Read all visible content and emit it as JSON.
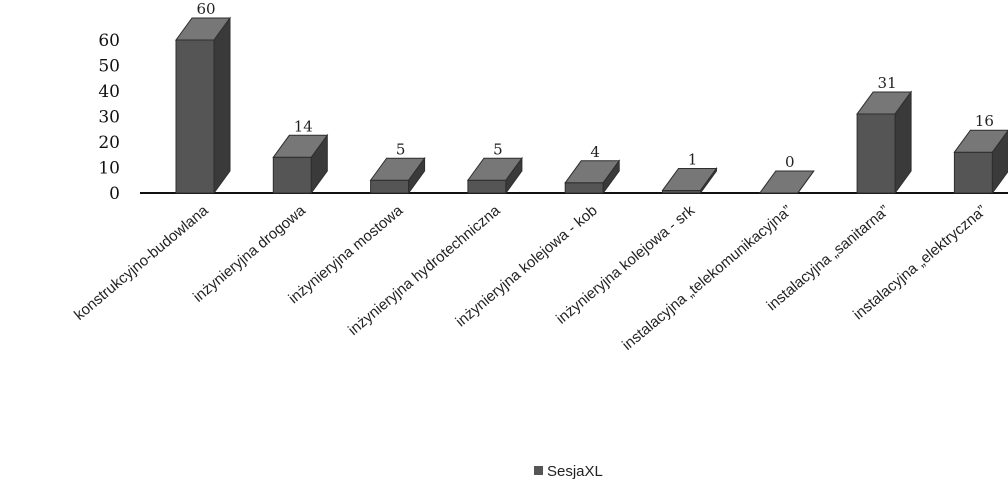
{
  "chart_data": {
    "type": "bar",
    "categories": [
      "konstrukcyjno-budowlana",
      "inżynieryjna drogowa",
      "inżynieryjna mostowa",
      "inżynieryjna hydrotechniczna",
      "inżynieryjna kolejowa - kob",
      "inżynieryjna kolejowa - srk",
      "instalacyjna „telekomunikacyjna”",
      "instalacyjna „sanitarna”",
      "instalacyjna „elektryczna”"
    ],
    "series": [
      {
        "name": "SesjaXL",
        "values": [
          60,
          14,
          5,
          5,
          4,
          1,
          0,
          31,
          16
        ]
      }
    ],
    "y_ticks": [
      0,
      10,
      20,
      30,
      40,
      50,
      60
    ],
    "ylim": [
      0,
      60
    ],
    "grid": false,
    "legend_position": "bottom",
    "bar_color": "#555555",
    "bar_top_color": "#777777",
    "bar_side_color": "#3a3a3a",
    "title": "",
    "xlabel": "",
    "ylabel": ""
  }
}
